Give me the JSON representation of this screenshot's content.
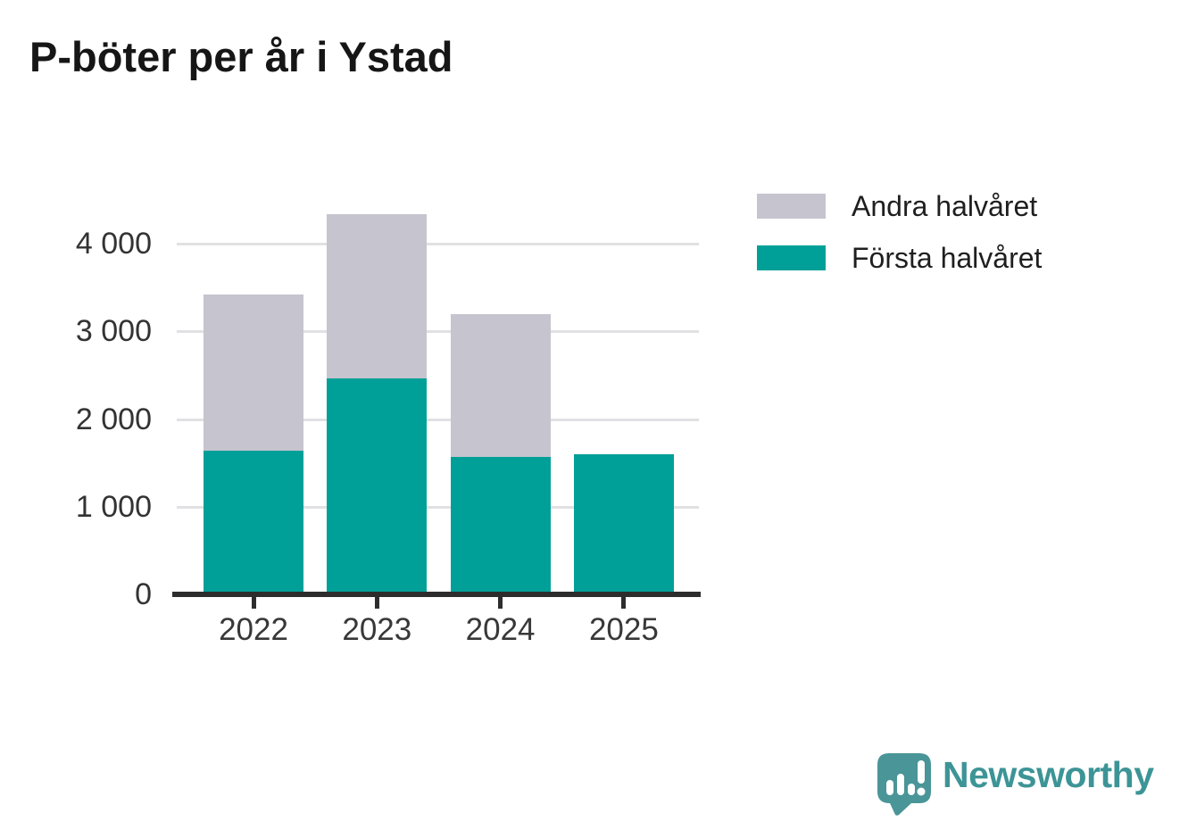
{
  "header": {
    "title": "P-böter per år i Ystad"
  },
  "chart_data": {
    "type": "bar",
    "stacked": true,
    "categories": [
      "2022",
      "2023",
      "2024",
      "2025"
    ],
    "series": [
      {
        "name": "Första halvåret",
        "color": "#00a098",
        "values": [
          1640,
          2460,
          1570,
          1600
        ]
      },
      {
        "name": "Andra halvåret",
        "color": "#c6c4ce",
        "values": [
          1780,
          1880,
          1630,
          0
        ]
      }
    ],
    "totals": [
      3420,
      4340,
      3200,
      1600
    ],
    "title": "P-böter per år i Ystad",
    "xlabel": "",
    "ylabel": "",
    "ylim": [
      0,
      4000
    ],
    "yticks": [
      0,
      1000,
      2000,
      3000,
      4000
    ],
    "ytick_labels": [
      "0",
      "1 000",
      "2 000",
      "3 000",
      "4 000"
    ],
    "grid": "horizontal",
    "legend_position": "top-right"
  },
  "legend": {
    "items": [
      {
        "label": "Andra halvåret",
        "color": "#c6c4ce"
      },
      {
        "label": "Första halvåret",
        "color": "#00a098"
      }
    ]
  },
  "branding": {
    "logo_text": "Newsworthy",
    "logo_icon": "speech-bubble-bar-chart-icon",
    "logo_color": "#3d9496",
    "icon_color": "#4a9597"
  },
  "colors": {
    "background": "#ffffff",
    "title_text": "#161616",
    "axis_line": "#2d2d2d",
    "tick_label": "#333333",
    "gridline": "#e1e1e4",
    "series_first_half": "#00a098",
    "series_second_half": "#c6c4ce"
  }
}
